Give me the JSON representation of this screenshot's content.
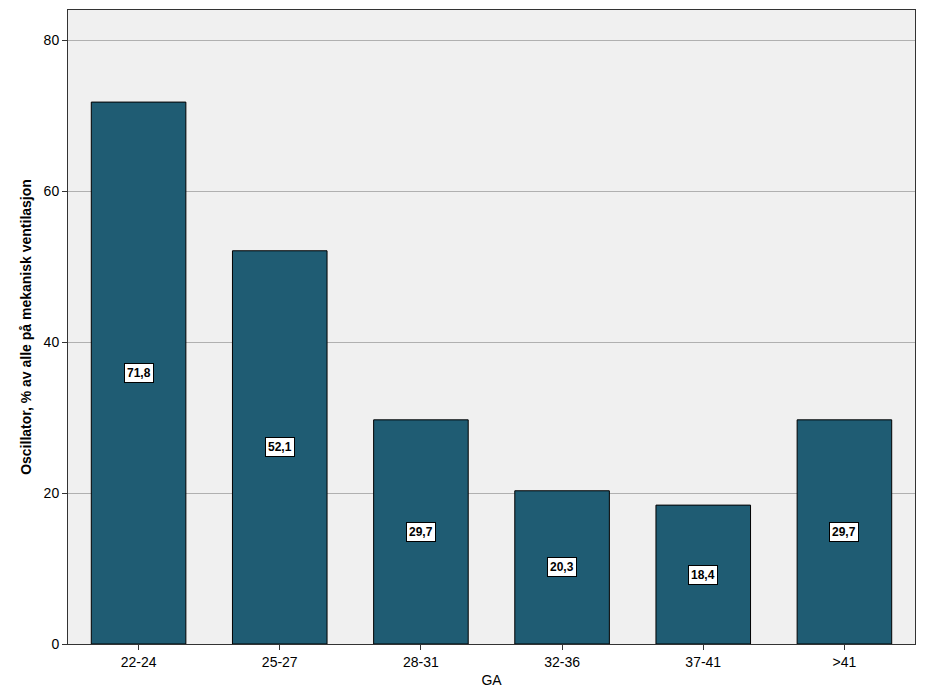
{
  "chart_data": {
    "type": "bar",
    "x_label": "GA",
    "y_label": "Oscillator, % av alle på mekanisk ventilasjon",
    "categories": [
      "22-24",
      "25-27",
      "28-31",
      "32-36",
      "37-41",
      ">41"
    ],
    "values": [
      71.8,
      52.1,
      29.7,
      20.3,
      18.4,
      29.7
    ],
    "value_labels": [
      "71,8",
      "52,1",
      "29,7",
      "20,3",
      "18,4",
      "29,7"
    ],
    "data_labels": true,
    "color": "#1f5c73",
    "ylim": [
      0,
      84
    ],
    "yticks": [
      0,
      20,
      40,
      60,
      80
    ],
    "grid": true
  }
}
